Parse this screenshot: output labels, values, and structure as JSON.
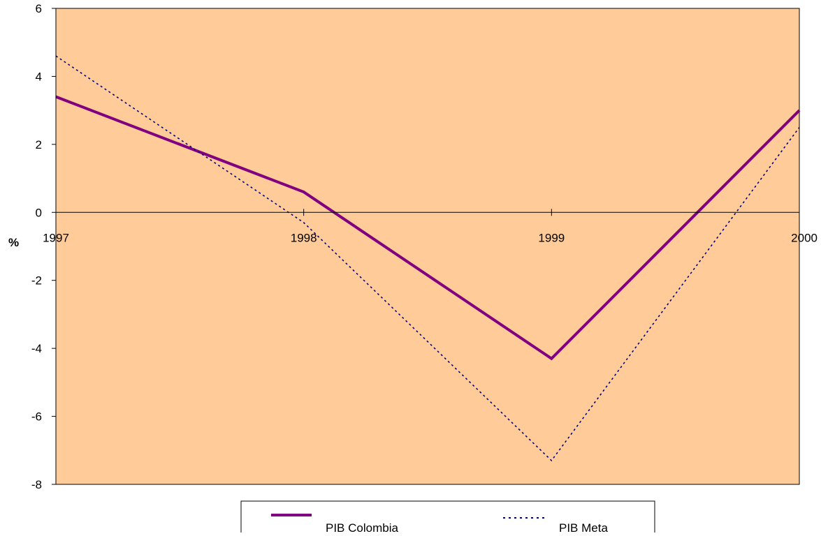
{
  "chart_data": {
    "type": "line",
    "title": "",
    "xlabel": "",
    "ylabel": "%",
    "x": [
      "1997",
      "1998",
      "1999",
      "2000"
    ],
    "ylim": [
      -8,
      6
    ],
    "yticks": [
      6,
      4,
      2,
      0,
      -2,
      -4,
      -6,
      -8
    ],
    "grid": false,
    "legend_position": "bottom",
    "plot_background": "#FFCC99",
    "series": [
      {
        "name": "PIB Colombia",
        "values": [
          3.4,
          0.6,
          -4.3,
          3.0
        ],
        "color": "#800080",
        "style": "solid"
      },
      {
        "name": "PIB Meta",
        "values": [
          4.6,
          -0.3,
          -7.3,
          2.5
        ],
        "color": "#000080",
        "style": "dotted"
      }
    ]
  }
}
